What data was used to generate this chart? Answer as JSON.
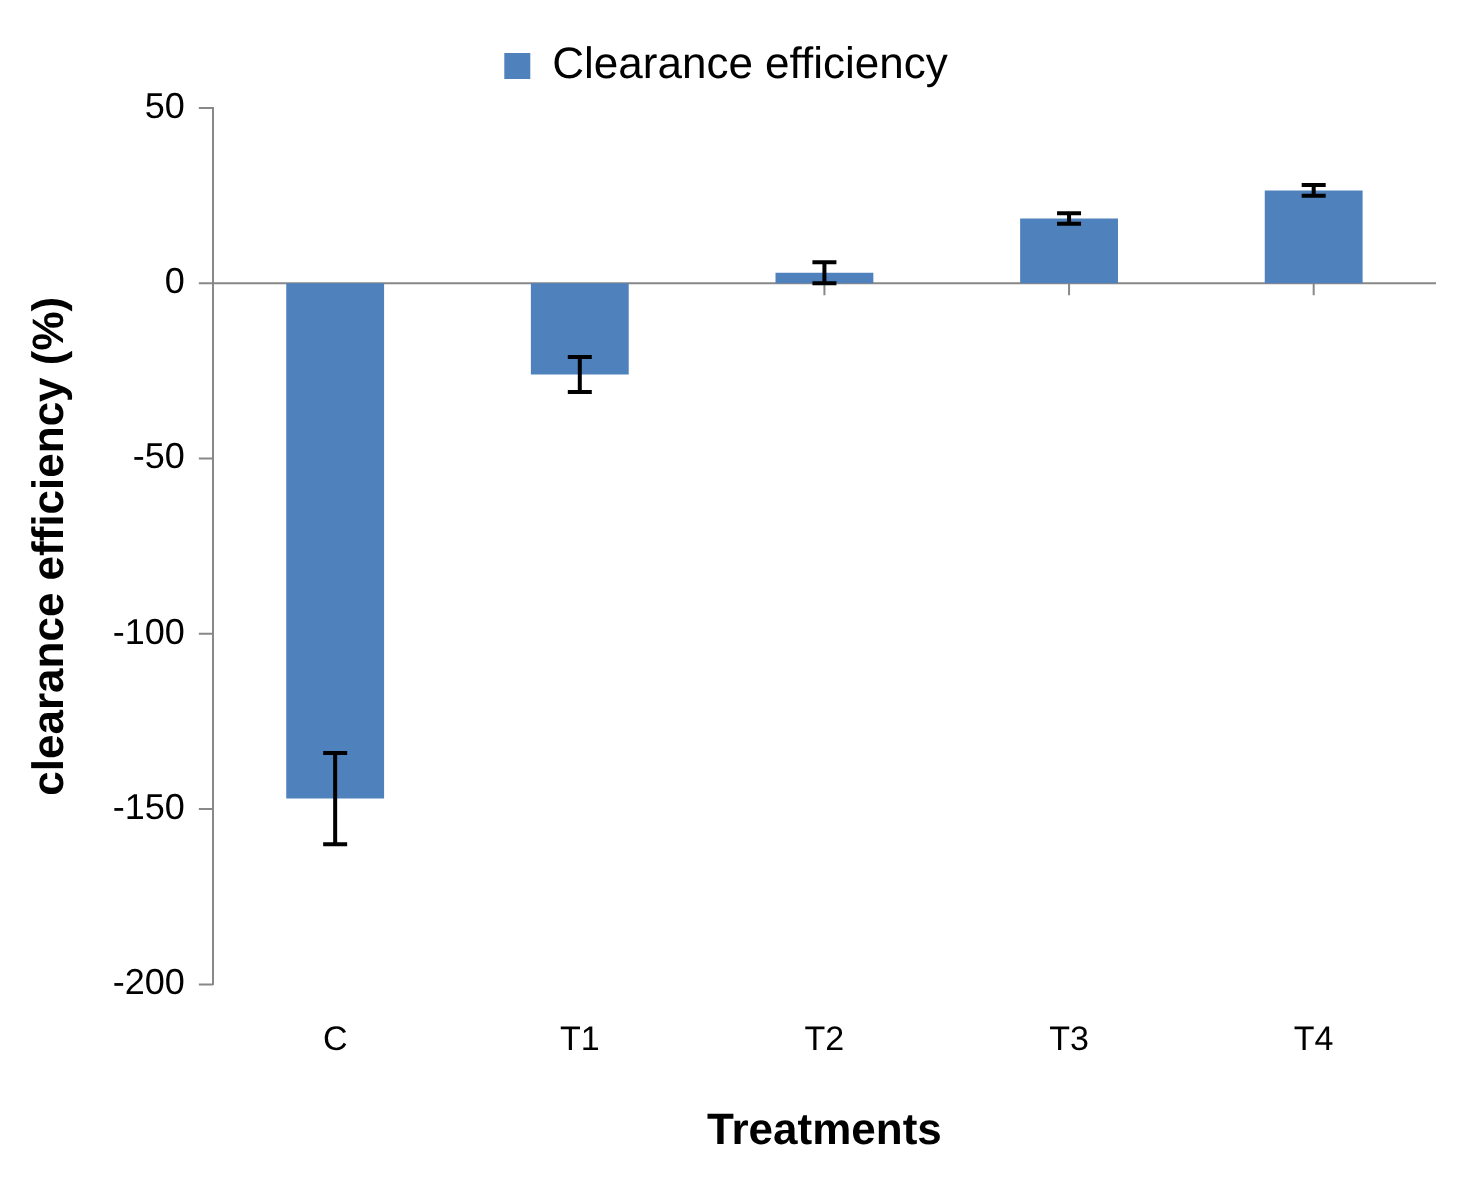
{
  "chart_data": {
    "type": "bar",
    "categories": [
      "C",
      "T1",
      "T2",
      "T3",
      "T4"
    ],
    "series": [
      {
        "name": "Clearance efficiency",
        "color": "#4f81bd",
        "values": [
          -147,
          -26,
          3,
          18.5,
          26.5
        ],
        "errors": [
          13,
          5,
          3,
          1.5,
          1.5
        ]
      }
    ],
    "xlabel": "Treatments",
    "ylabel": "clearance efficiency (%)",
    "ylim": [
      -200,
      50
    ],
    "yticks": [
      -200,
      -150,
      -100,
      -50,
      0,
      50
    ],
    "grid": false,
    "legend": "top",
    "ref_lines": [
      {
        "axis": "y",
        "value": 0,
        "color": "#888888"
      }
    ]
  }
}
